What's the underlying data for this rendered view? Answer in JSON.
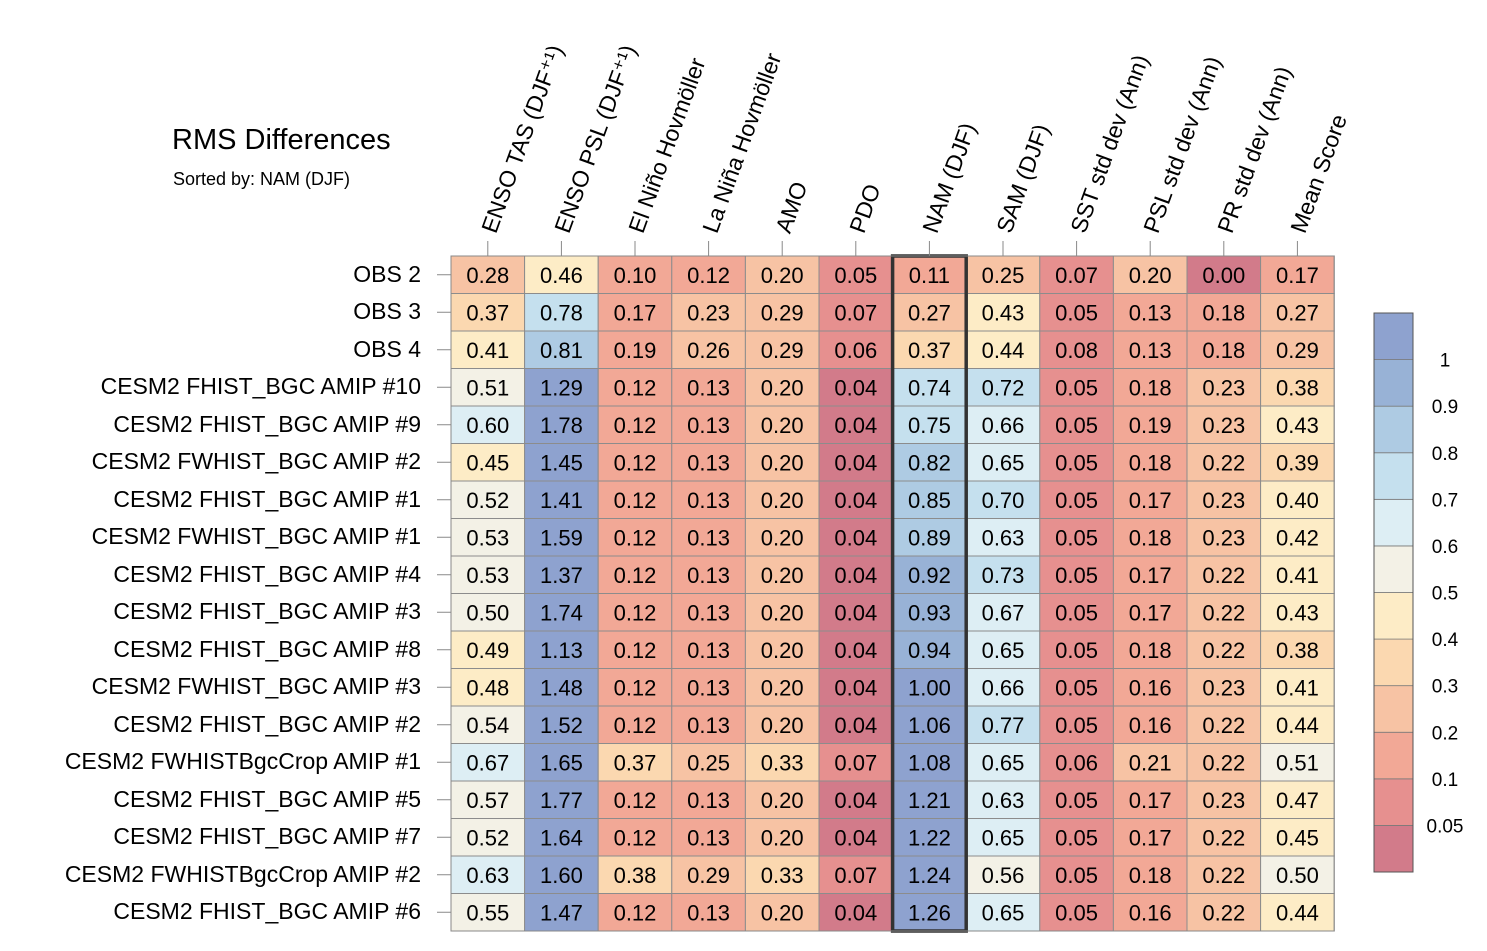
{
  "chart_data": {
    "type": "heatmap",
    "title": "RMS Differences",
    "subtitle": "Sorted by: NAM (DJF)",
    "columns": [
      "ENSO TAS (DJF⁺¹)",
      "ENSO PSL (DJF⁺¹)",
      "El Niño Hovmöller",
      "La Niña Hovmöller",
      "AMO",
      "PDO",
      "NAM (DJF)",
      "SAM (DJF)",
      "SST std dev (Ann)",
      "PSL std dev (Ann)",
      "PR std dev (Ann)",
      "Mean Score"
    ],
    "highlighted_column": "NAM (DJF)",
    "rows": [
      {
        "label": "OBS 2",
        "values": [
          "0.28",
          "0.46",
          "0.10",
          "0.12",
          "0.20",
          "0.05",
          "0.11",
          "0.25",
          "0.07",
          "0.20",
          "0.00",
          "0.17"
        ]
      },
      {
        "label": "OBS 3",
        "values": [
          "0.37",
          "0.78",
          "0.17",
          "0.23",
          "0.29",
          "0.07",
          "0.27",
          "0.43",
          "0.05",
          "0.13",
          "0.18",
          "0.27"
        ]
      },
      {
        "label": "OBS 4",
        "values": [
          "0.41",
          "0.81",
          "0.19",
          "0.26",
          "0.29",
          "0.06",
          "0.37",
          "0.44",
          "0.08",
          "0.13",
          "0.18",
          "0.29"
        ]
      },
      {
        "label": "CESM2 FHIST_BGC AMIP #10",
        "values": [
          "0.51",
          "1.29",
          "0.12",
          "0.13",
          "0.20",
          "0.04",
          "0.74",
          "0.72",
          "0.05",
          "0.18",
          "0.23",
          "0.38"
        ]
      },
      {
        "label": "CESM2 FHIST_BGC AMIP #9",
        "values": [
          "0.60",
          "1.78",
          "0.12",
          "0.13",
          "0.20",
          "0.04",
          "0.75",
          "0.66",
          "0.05",
          "0.19",
          "0.23",
          "0.43"
        ]
      },
      {
        "label": "CESM2 FWHIST_BGC AMIP #2",
        "values": [
          "0.45",
          "1.45",
          "0.12",
          "0.13",
          "0.20",
          "0.04",
          "0.82",
          "0.65",
          "0.05",
          "0.18",
          "0.22",
          "0.39"
        ]
      },
      {
        "label": "CESM2 FHIST_BGC AMIP #1",
        "values": [
          "0.52",
          "1.41",
          "0.12",
          "0.13",
          "0.20",
          "0.04",
          "0.85",
          "0.70",
          "0.05",
          "0.17",
          "0.23",
          "0.40"
        ]
      },
      {
        "label": "CESM2 FWHIST_BGC AMIP #1",
        "values": [
          "0.53",
          "1.59",
          "0.12",
          "0.13",
          "0.20",
          "0.04",
          "0.89",
          "0.63",
          "0.05",
          "0.18",
          "0.23",
          "0.42"
        ]
      },
      {
        "label": "CESM2 FHIST_BGC AMIP #4",
        "values": [
          "0.53",
          "1.37",
          "0.12",
          "0.13",
          "0.20",
          "0.04",
          "0.92",
          "0.73",
          "0.05",
          "0.17",
          "0.22",
          "0.41"
        ]
      },
      {
        "label": "CESM2 FHIST_BGC AMIP #3",
        "values": [
          "0.50",
          "1.74",
          "0.12",
          "0.13",
          "0.20",
          "0.04",
          "0.93",
          "0.67",
          "0.05",
          "0.17",
          "0.22",
          "0.43"
        ]
      },
      {
        "label": "CESM2 FHIST_BGC AMIP #8",
        "values": [
          "0.49",
          "1.13",
          "0.12",
          "0.13",
          "0.20",
          "0.04",
          "0.94",
          "0.65",
          "0.05",
          "0.18",
          "0.22",
          "0.38"
        ]
      },
      {
        "label": "CESM2 FWHIST_BGC AMIP #3",
        "values": [
          "0.48",
          "1.48",
          "0.12",
          "0.13",
          "0.20",
          "0.04",
          "1.00",
          "0.66",
          "0.05",
          "0.16",
          "0.23",
          "0.41"
        ]
      },
      {
        "label": "CESM2 FHIST_BGC AMIP #2",
        "values": [
          "0.54",
          "1.52",
          "0.12",
          "0.13",
          "0.20",
          "0.04",
          "1.06",
          "0.77",
          "0.05",
          "0.16",
          "0.22",
          "0.44"
        ]
      },
      {
        "label": "CESM2 FWHISTBgcCrop AMIP #1",
        "values": [
          "0.67",
          "1.65",
          "0.37",
          "0.25",
          "0.33",
          "0.07",
          "1.08",
          "0.65",
          "0.06",
          "0.21",
          "0.22",
          "0.51"
        ]
      },
      {
        "label": "CESM2 FHIST_BGC AMIP #5",
        "values": [
          "0.57",
          "1.77",
          "0.12",
          "0.13",
          "0.20",
          "0.04",
          "1.21",
          "0.63",
          "0.05",
          "0.17",
          "0.23",
          "0.47"
        ]
      },
      {
        "label": "CESM2 FHIST_BGC AMIP #7",
        "values": [
          "0.52",
          "1.64",
          "0.12",
          "0.13",
          "0.20",
          "0.04",
          "1.22",
          "0.65",
          "0.05",
          "0.17",
          "0.22",
          "0.45"
        ]
      },
      {
        "label": "CESM2 FWHISTBgcCrop AMIP #2",
        "values": [
          "0.63",
          "1.60",
          "0.38",
          "0.29",
          "0.33",
          "0.07",
          "1.24",
          "0.56",
          "0.05",
          "0.18",
          "0.22",
          "0.50"
        ]
      },
      {
        "label": "CESM2 FHIST_BGC AMIP #6",
        "values": [
          "0.55",
          "1.47",
          "0.12",
          "0.13",
          "0.20",
          "0.04",
          "1.26",
          "0.65",
          "0.05",
          "0.16",
          "0.22",
          "0.44"
        ]
      }
    ],
    "colorbar": {
      "boundaries": [
        0.05,
        0.1,
        0.2,
        0.3,
        0.4,
        0.5,
        0.6,
        0.7,
        0.8,
        0.9,
        1
      ],
      "tick_labels": [
        "1",
        "0.9",
        "0.8",
        "0.7",
        "0.6",
        "0.5",
        "0.4",
        "0.3",
        "0.2",
        "0.1",
        "0.05"
      ],
      "colors_low_to_high": [
        "#d27b8a",
        "#e6908f",
        "#f2a896",
        "#f7c3a4",
        "#fbd8b0",
        "#fdecc6",
        "#f3f1e6",
        "#ddeef4",
        "#c5e0ee",
        "#aecbe3",
        "#98b2d6",
        "#8ea2cf"
      ]
    },
    "colors": {
      "grid_line": "#8c8c8c",
      "highlight_border": "#333333"
    }
  }
}
